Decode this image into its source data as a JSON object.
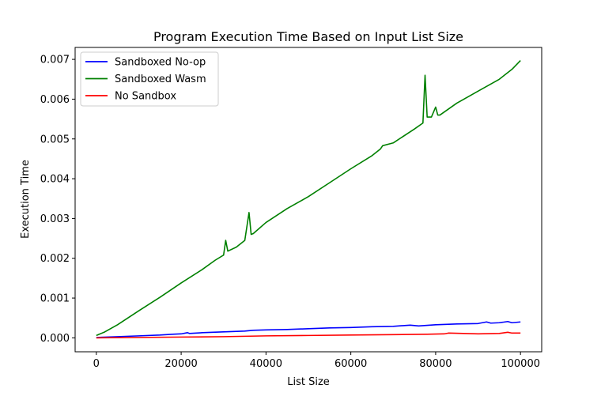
{
  "chart_data": {
    "type": "line",
    "title": "Program Execution Time Based on Input List Size",
    "xlabel": "List Size",
    "ylabel": "Execution Time",
    "xlim": [
      -5000,
      105000
    ],
    "ylim": [
      -0.00035,
      0.0073
    ],
    "xticks": [
      0,
      20000,
      40000,
      60000,
      80000,
      100000
    ],
    "xtick_labels": [
      "0",
      "20000",
      "40000",
      "60000",
      "80000",
      "100000"
    ],
    "yticks": [
      0,
      0.001,
      0.002,
      0.003,
      0.004,
      0.005,
      0.006,
      0.007
    ],
    "ytick_labels": [
      "0.000",
      "0.001",
      "0.002",
      "0.003",
      "0.004",
      "0.005",
      "0.006",
      "0.007"
    ],
    "grid": false,
    "legend_position": "top-left",
    "series": [
      {
        "name": "Sandboxed No-op",
        "color": "#0000ff",
        "x": [
          0,
          5000,
          10000,
          15000,
          18000,
          20000,
          21500,
          22000,
          25000,
          30000,
          35000,
          37000,
          40000,
          45000,
          50000,
          55000,
          60000,
          65000,
          70000,
          74000,
          76000,
          80000,
          85000,
          90000,
          92000,
          93000,
          95000,
          97000,
          98000,
          100000
        ],
        "y": [
          1e-05,
          3e-05,
          5e-05,
          7e-05,
          9e-05,
          0.0001,
          0.00013,
          0.00011,
          0.00013,
          0.00015,
          0.00017,
          0.00019,
          0.0002,
          0.00021,
          0.00023,
          0.00025,
          0.00026,
          0.00028,
          0.00029,
          0.00032,
          0.0003,
          0.00033,
          0.00035,
          0.00036,
          0.0004,
          0.00037,
          0.00038,
          0.00041,
          0.00038,
          0.0004
        ]
      },
      {
        "name": "Sandboxed Wasm",
        "color": "#008000",
        "x": [
          0,
          2000,
          5000,
          10000,
          15000,
          20000,
          25000,
          28000,
          30000,
          30500,
          31000,
          33000,
          35000,
          36000,
          36500,
          37000,
          40000,
          45000,
          50000,
          55000,
          60000,
          65000,
          67000,
          67500,
          70000,
          75000,
          77000,
          77500,
          78000,
          79000,
          80000,
          80500,
          81000,
          85000,
          90000,
          95000,
          98000,
          100000
        ],
        "y": [
          6e-05,
          0.00015,
          0.00033,
          0.00068,
          0.00102,
          0.00138,
          0.00172,
          0.00195,
          0.00208,
          0.00245,
          0.00218,
          0.00228,
          0.00245,
          0.00315,
          0.0026,
          0.00262,
          0.0029,
          0.00325,
          0.00355,
          0.0039,
          0.00425,
          0.00458,
          0.00475,
          0.00483,
          0.0049,
          0.00525,
          0.0054,
          0.0066,
          0.00555,
          0.00555,
          0.0058,
          0.0056,
          0.0056,
          0.0059,
          0.0062,
          0.0065,
          0.00675,
          0.00697
        ]
      },
      {
        "name": "No Sandbox",
        "color": "#ff0000",
        "x": [
          0,
          10000,
          20000,
          30000,
          40000,
          50000,
          60000,
          70000,
          78000,
          82000,
          83000,
          90000,
          95000,
          97000,
          98000,
          100000
        ],
        "y": [
          0.0,
          1e-05,
          2e-05,
          3e-05,
          5e-05,
          6e-05,
          7e-05,
          8e-05,
          9e-05,
          0.0001,
          0.00012,
          0.0001,
          0.00011,
          0.00014,
          0.00012,
          0.00012
        ]
      }
    ]
  }
}
